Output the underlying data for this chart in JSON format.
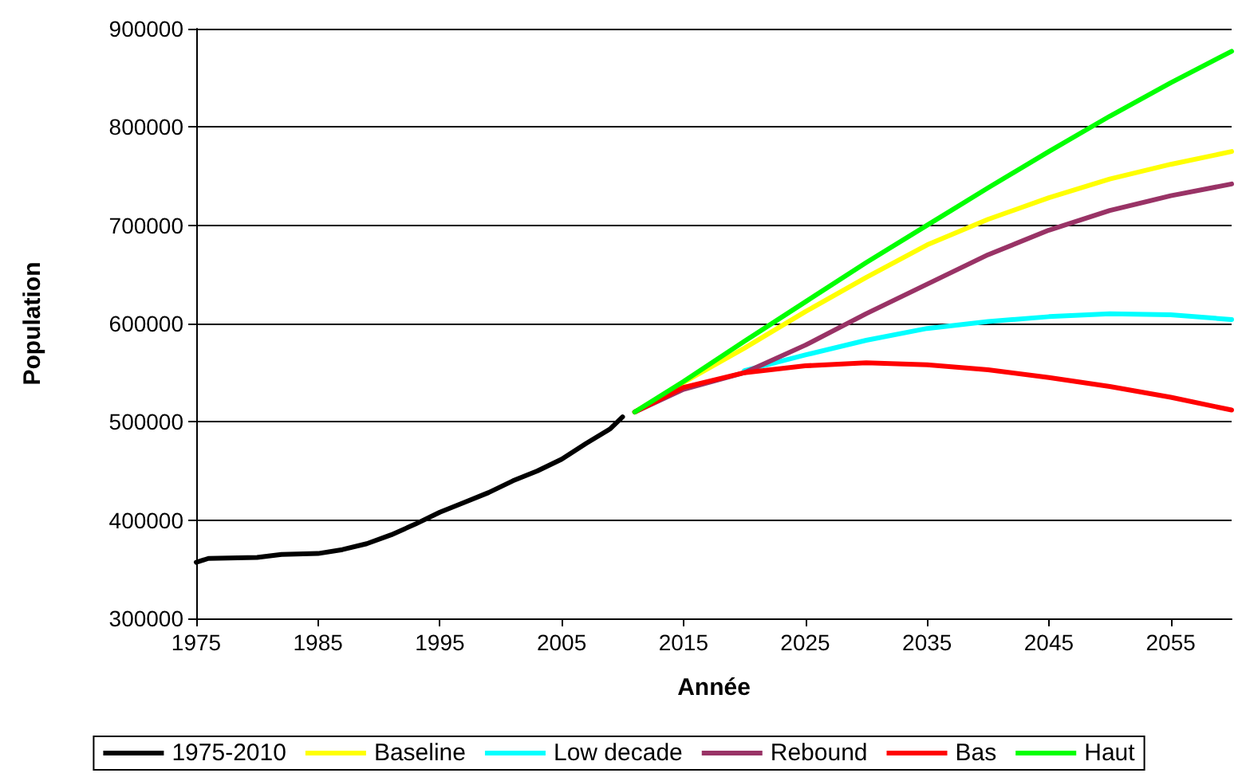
{
  "chart_data": {
    "type": "line",
    "xlabel": "Année",
    "ylabel": "Population",
    "xlim": [
      1975,
      2060
    ],
    "xticks": [
      1975,
      1985,
      1995,
      2005,
      2015,
      2025,
      2035,
      2045,
      2055
    ],
    "ylim": [
      300000,
      900000
    ],
    "yticks": [
      300000,
      400000,
      500000,
      600000,
      700000,
      800000,
      900000
    ],
    "grid": "y",
    "legend": "bottom",
    "marker": "none",
    "line_style": "solid",
    "series": [
      {
        "name": "1975-2010",
        "color": "#000000",
        "x": [
          1975,
          1976,
          1980,
          1982,
          1985,
          1987,
          1989,
          1991,
          1993,
          1995,
          1997,
          1999,
          2001,
          2003,
          2005,
          2007,
          2009,
          2010
        ],
        "values": [
          357000,
          361000,
          362000,
          365000,
          366000,
          370000,
          376000,
          385000,
          396000,
          408000,
          418000,
          428000,
          440000,
          450000,
          462000,
          478000,
          493000,
          505000
        ]
      },
      {
        "name": "Baseline",
        "color": "#ffff00",
        "x": [
          2011,
          2015,
          2020,
          2025,
          2030,
          2035,
          2040,
          2045,
          2050,
          2055,
          2060
        ],
        "values": [
          510000,
          540000,
          575000,
          612000,
          647000,
          680000,
          706000,
          728000,
          747000,
          762000,
          775000
        ]
      },
      {
        "name": "Low decade",
        "color": "#00ffff",
        "x": [
          2020,
          2025,
          2030,
          2035,
          2040,
          2045,
          2050,
          2055,
          2060
        ],
        "values": [
          552000,
          568000,
          583000,
          595000,
          602000,
          607000,
          610000,
          609000,
          604000
        ]
      },
      {
        "name": "Rebound",
        "color": "#993366",
        "x": [
          2011,
          2015,
          2020,
          2025,
          2030,
          2035,
          2040,
          2045,
          2050,
          2055,
          2060
        ],
        "values": [
          510000,
          533000,
          550000,
          578000,
          610000,
          640000,
          670000,
          695000,
          715000,
          730000,
          742000
        ]
      },
      {
        "name": "Bas",
        "color": "#ff0000",
        "x": [
          2011,
          2015,
          2020,
          2025,
          2030,
          2035,
          2040,
          2045,
          2050,
          2055,
          2060
        ],
        "values": [
          510000,
          535000,
          550000,
          557000,
          560000,
          558000,
          553000,
          545000,
          536000,
          525000,
          512000
        ]
      },
      {
        "name": "Haut",
        "color": "#00ff00",
        "x": [
          2011,
          2015,
          2020,
          2025,
          2030,
          2035,
          2040,
          2045,
          2050,
          2055,
          2060
        ],
        "values": [
          510000,
          541000,
          582000,
          622000,
          662000,
          700000,
          738000,
          775000,
          811000,
          845000,
          877000
        ]
      }
    ]
  }
}
